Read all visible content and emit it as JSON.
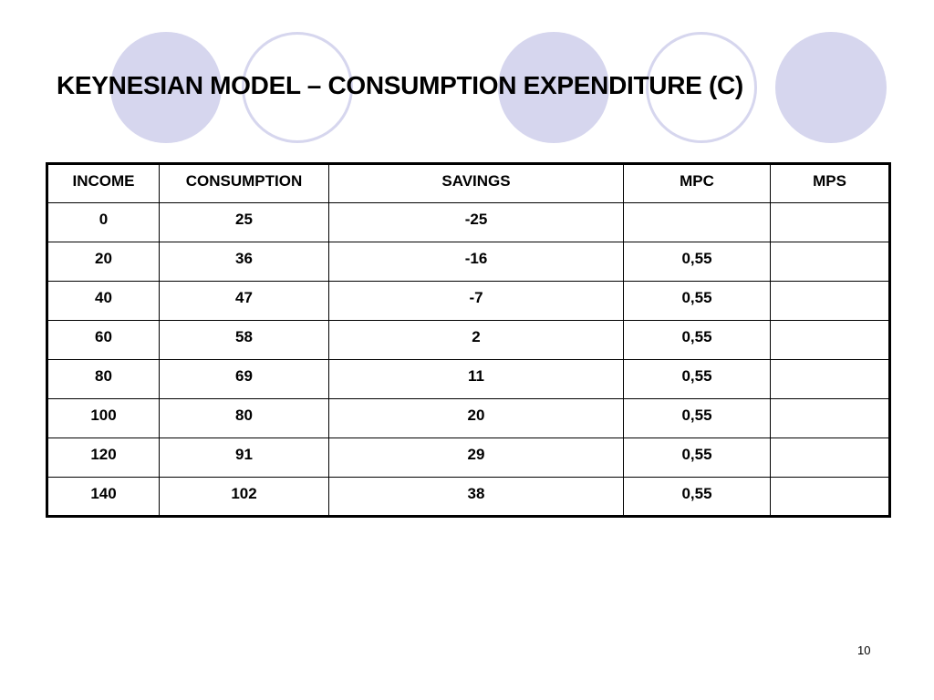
{
  "slide": {
    "title": "KEYNESIAN MODEL – CONSUMPTION EXPENDITURE (C)",
    "page_number": "10"
  },
  "table": {
    "headers": [
      "INCOME",
      "CONSUMPTION",
      "SAVINGS",
      "MPC",
      "MPS"
    ],
    "rows": [
      [
        "0",
        "25",
        "-25",
        "",
        ""
      ],
      [
        "20",
        "36",
        "-16",
        "0,55",
        ""
      ],
      [
        "40",
        "47",
        "-7",
        "0,55",
        ""
      ],
      [
        "60",
        "58",
        "2",
        "0,55",
        ""
      ],
      [
        "80",
        "69",
        "11",
        "0,55",
        ""
      ],
      [
        "100",
        "80",
        "20",
        "0,55",
        ""
      ],
      [
        "120",
        "91",
        "29",
        "0,55",
        ""
      ],
      [
        "140",
        "102",
        "38",
        "0,55",
        ""
      ]
    ]
  },
  "colors": {
    "circle_fill": "#d6d6ee",
    "text": "#000000",
    "background": "#ffffff"
  }
}
